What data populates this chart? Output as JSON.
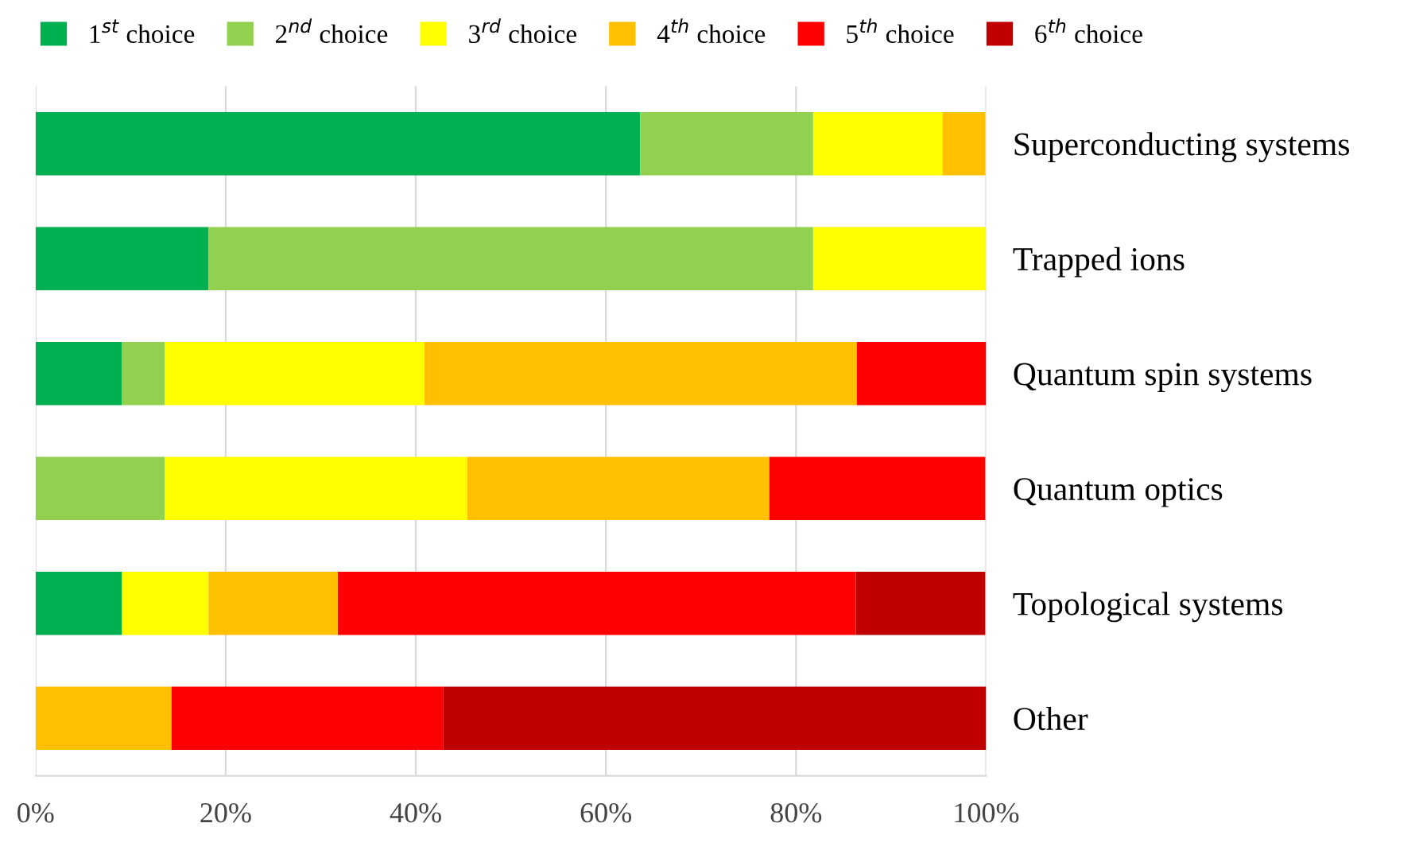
{
  "chart_data": {
    "type": "bar",
    "orientation": "horizontal",
    "stacked": true,
    "categories": [
      "Superconducting systems",
      "Trapped ions",
      "Quantum spin systems",
      "Quantum optics",
      "Topological systems",
      "Other"
    ],
    "series": [
      {
        "name": "1$^{st}$ choice",
        "color": "#00b050",
        "values": [
          63.6,
          18.2,
          9.1,
          0,
          9.1,
          0
        ]
      },
      {
        "name": "2$^{nd}$ choice",
        "color": "#92d050",
        "values": [
          18.2,
          63.6,
          4.5,
          13.6,
          0,
          0
        ]
      },
      {
        "name": "3$^{rd}$ choice",
        "color": "#ffff00",
        "values": [
          13.6,
          18.2,
          27.3,
          31.8,
          9.1,
          0
        ]
      },
      {
        "name": "4$^{th}$ choice",
        "color": "#ffc000",
        "values": [
          4.5,
          0,
          45.5,
          31.8,
          13.6,
          14.3
        ]
      },
      {
        "name": "5$^{th}$ choice",
        "color": "#ff0000",
        "values": [
          0,
          0,
          13.6,
          22.7,
          54.5,
          28.6
        ]
      },
      {
        "name": "6$^{th}$ choice",
        "color": "#c00000",
        "values": [
          0,
          0,
          0,
          0,
          13.6,
          57.1
        ]
      }
    ],
    "xlim": [
      0,
      100
    ],
    "xticks": [
      {
        "value": 0,
        "label": "0%"
      },
      {
        "value": 20,
        "label": "20%"
      },
      {
        "value": 40,
        "label": "40%"
      },
      {
        "value": 60,
        "label": "60%"
      },
      {
        "value": 80,
        "label": "80%"
      },
      {
        "value": 100,
        "label": "100%"
      }
    ],
    "grid": "x",
    "legend": "top"
  }
}
